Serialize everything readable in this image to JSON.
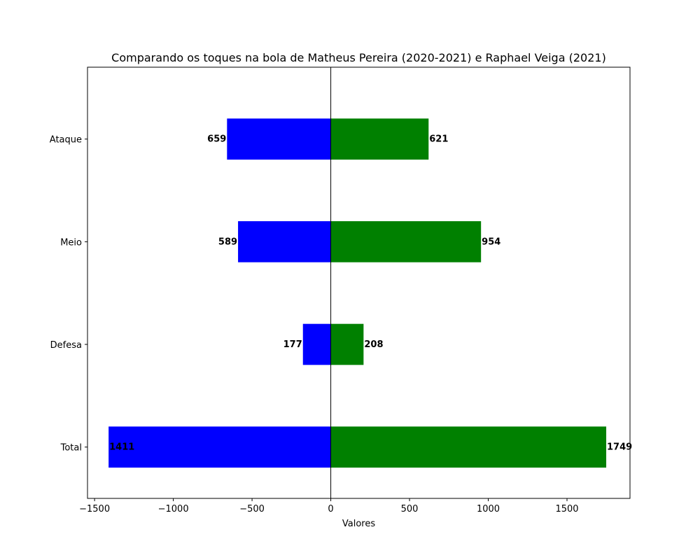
{
  "chart_data": {
    "type": "bar",
    "orientation": "horizontal",
    "title": "Comparando os toques na bola de Matheus Pereira (2020-2021) e Raphael Veiga (2021)",
    "xlabel": "Valores",
    "ylabel": "",
    "categories": [
      "Ataque",
      "Meio",
      "Defesa",
      "Total"
    ],
    "series": [
      {
        "values": [
          -659,
          -589,
          -177,
          -1411
        ],
        "labels": [
          "659",
          "589",
          "177",
          "1411"
        ],
        "color": "#0000ff"
      },
      {
        "values": [
          621,
          954,
          208,
          1749
        ],
        "labels": [
          "621",
          "954",
          "208",
          "1749"
        ],
        "color": "#008000"
      }
    ],
    "xlim": [
      -1545,
      1900
    ],
    "xticks": [
      -1500,
      -1000,
      -500,
      0,
      500,
      1000,
      1500
    ],
    "xtick_labels": [
      "−1500",
      "−1000",
      "−500",
      "0",
      "500",
      "1000",
      "1500"
    ],
    "grid": false,
    "zero_line": true
  }
}
